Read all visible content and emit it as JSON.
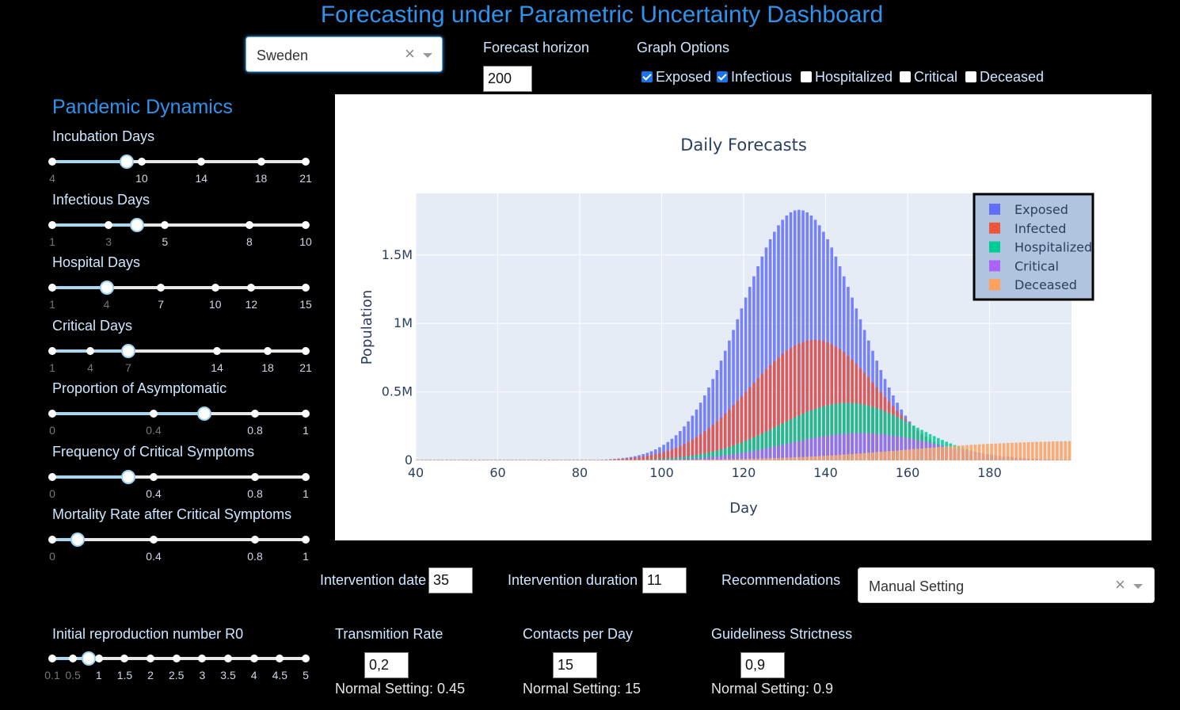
{
  "header": {
    "title": "Forecasting under Parametric Uncertainty Dashboard"
  },
  "country_select": {
    "value": "Sweden",
    "clear_icon": "×"
  },
  "forecast_horizon": {
    "label": "Forecast horizon",
    "value": "200"
  },
  "graph_options": {
    "label": "Graph Options",
    "items": [
      {
        "label": "Exposed",
        "checked": true
      },
      {
        "label": "Infectious",
        "checked": true
      },
      {
        "label": "Hospitalized",
        "checked": false
      },
      {
        "label": "Critical",
        "checked": false
      },
      {
        "label": "Deceased",
        "checked": false
      }
    ]
  },
  "sidebar": {
    "heading": "Pandemic Dynamics",
    "sliders": [
      {
        "label": "Incubation Days",
        "min": 4,
        "max": 21,
        "value": 9,
        "ticks": [
          {
            "v": 4,
            "t": "4",
            "dim": true
          },
          {
            "v": 10,
            "t": "10"
          },
          {
            "v": 14,
            "t": "14"
          },
          {
            "v": 18,
            "t": "18"
          },
          {
            "v": 21,
            "t": "21"
          }
        ]
      },
      {
        "label": "Infectious Days",
        "min": 1,
        "max": 10,
        "value": 4,
        "ticks": [
          {
            "v": 1,
            "t": "1",
            "dim": true
          },
          {
            "v": 3,
            "t": "3",
            "dim": true
          },
          {
            "v": 5,
            "t": "5"
          },
          {
            "v": 8,
            "t": "8"
          },
          {
            "v": 10,
            "t": "10"
          }
        ]
      },
      {
        "label": "Hospital Days",
        "min": 1,
        "max": 15,
        "value": 4,
        "ticks": [
          {
            "v": 1,
            "t": "1",
            "dim": true
          },
          {
            "v": 4,
            "t": "4",
            "dim": true
          },
          {
            "v": 7,
            "t": "7"
          },
          {
            "v": 10,
            "t": "10"
          },
          {
            "v": 12,
            "t": "12"
          },
          {
            "v": 15,
            "t": "15"
          }
        ]
      },
      {
        "label": "Critical Days",
        "min": 1,
        "max": 21,
        "value": 7,
        "ticks": [
          {
            "v": 1,
            "t": "1",
            "dim": true
          },
          {
            "v": 4,
            "t": "4",
            "dim": true
          },
          {
            "v": 7,
            "t": "7",
            "dim": true
          },
          {
            "v": 14,
            "t": "14"
          },
          {
            "v": 18,
            "t": "18"
          },
          {
            "v": 21,
            "t": "21"
          }
        ]
      },
      {
        "label": "Proportion of Asymptomatic",
        "min": 0,
        "max": 1,
        "value": 0.6,
        "ticks": [
          {
            "v": 0,
            "t": "0",
            "dim": true
          },
          {
            "v": 0.4,
            "t": "0.4",
            "dim": true
          },
          {
            "v": 0.8,
            "t": "0.8"
          },
          {
            "v": 1,
            "t": "1"
          }
        ]
      },
      {
        "label": "Frequency of Critical Symptoms",
        "min": 0,
        "max": 1,
        "value": 0.3,
        "ticks": [
          {
            "v": 0,
            "t": "0",
            "dim": true
          },
          {
            "v": 0.4,
            "t": "0.4"
          },
          {
            "v": 0.8,
            "t": "0.8"
          },
          {
            "v": 1,
            "t": "1"
          }
        ]
      },
      {
        "label": "Mortality Rate after Critical Symptoms",
        "min": 0,
        "max": 1,
        "value": 0.1,
        "ticks": [
          {
            "v": 0,
            "t": "0",
            "dim": true
          },
          {
            "v": 0.4,
            "t": "0.4"
          },
          {
            "v": 0.8,
            "t": "0.8"
          },
          {
            "v": 1,
            "t": "1"
          }
        ]
      }
    ]
  },
  "r0_slider": {
    "label": "Initial reproduction number R0",
    "min": 0.1,
    "max": 5,
    "value": 0.8,
    "ticks": [
      {
        "v": 0.1,
        "t": "0.1",
        "dim": true
      },
      {
        "v": 0.5,
        "t": "0.5",
        "dim": true
      },
      {
        "v": 1,
        "t": "1"
      },
      {
        "v": 1.5,
        "t": "1.5"
      },
      {
        "v": 2,
        "t": "2"
      },
      {
        "v": 2.5,
        "t": "2.5"
      },
      {
        "v": 3,
        "t": "3"
      },
      {
        "v": 3.5,
        "t": "3.5"
      },
      {
        "v": 4,
        "t": "4"
      },
      {
        "v": 4.5,
        "t": "4.5"
      },
      {
        "v": 5,
        "t": "5"
      }
    ]
  },
  "intervention": {
    "date_label": "Intervention date",
    "date_value": "35",
    "duration_label": "Intervention duration",
    "duration_value": "11",
    "recommendations_label": "Recommendations",
    "recommendations_value": "Manual Setting"
  },
  "params": {
    "transmission": {
      "label": "Transmition Rate",
      "value": "0,2",
      "normal": "Normal Setting: 0.45"
    },
    "contacts": {
      "label": "Contacts per Day",
      "value": "15",
      "normal": "Normal Setting: 15"
    },
    "strictness": {
      "label": "Guideliness Strictness",
      "value": "0,9",
      "normal": "Normal Setting: 0.9"
    }
  },
  "chart_data": {
    "type": "bar",
    "title": "Daily Forecasts",
    "xlabel": "Day",
    "ylabel": "Population",
    "xlim": [
      40,
      200
    ],
    "ylim": [
      0,
      1950000
    ],
    "x_ticks": [
      40,
      60,
      80,
      100,
      120,
      140,
      160,
      180
    ],
    "y_ticks": [
      {
        "v": 0,
        "t": "0"
      },
      {
        "v": 500000,
        "t": "0.5M"
      },
      {
        "v": 1000000,
        "t": "1M"
      },
      {
        "v": 1500000,
        "t": "1.5M"
      }
    ],
    "barmode": "overlay",
    "legend_position": "top-right",
    "series": [
      {
        "name": "Exposed",
        "color": "#636efa",
        "peak_day": 133,
        "peak": 1830000,
        "sigma_left": 14,
        "sigma_right": 14
      },
      {
        "name": "Infected",
        "color": "#ef553b",
        "peak_day": 137,
        "peak": 880000,
        "sigma_left": 16,
        "sigma_right": 15
      },
      {
        "name": "Hospitalized",
        "color": "#00cc96",
        "peak_day": 145,
        "peak": 420000,
        "sigma_left": 17,
        "sigma_right": 16
      },
      {
        "name": "Critical",
        "color": "#ab63fa",
        "peak_day": 148,
        "peak": 200000,
        "sigma_left": 18,
        "sigma_right": 18
      },
      {
        "name": "Deceased",
        "color": "#ffa15a",
        "type": "cumulative",
        "midpoint": 158,
        "scale": 15,
        "max": 150000
      }
    ]
  }
}
